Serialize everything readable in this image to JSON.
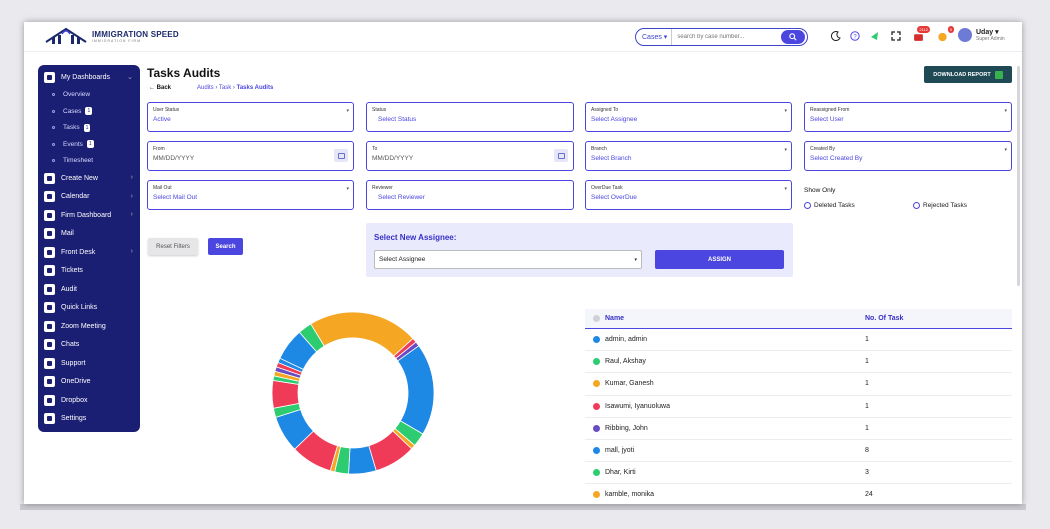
{
  "header": {
    "brand": "IMMIGRATION SPEED",
    "brand_sub": "IMMIGRATION FIRM",
    "search_category": "Cases",
    "search_placeholder": "search by case number...",
    "notif_count": "2112",
    "alert_count": "0",
    "user_name": "Uday",
    "user_role": "Super Admin"
  },
  "sidebar": {
    "items": [
      {
        "label": "My Dashboards"
      },
      {
        "label": "Create New"
      },
      {
        "label": "Calendar"
      },
      {
        "label": "Firm Dashboard"
      },
      {
        "label": "Mail"
      },
      {
        "label": "Front Desk"
      },
      {
        "label": "Tickets"
      },
      {
        "label": "Audit"
      },
      {
        "label": "Quick Links"
      },
      {
        "label": "Zoom Meeting"
      },
      {
        "label": "Chats"
      },
      {
        "label": "Support"
      },
      {
        "label": "OneDrive"
      },
      {
        "label": "Dropbox"
      },
      {
        "label": "Settings"
      }
    ],
    "sub": [
      {
        "label": "Overview",
        "count": ""
      },
      {
        "label": "Cases",
        "count": "1"
      },
      {
        "label": "Tasks",
        "count": "1"
      },
      {
        "label": "Events",
        "count": "1"
      },
      {
        "label": "Timesheet",
        "count": ""
      }
    ]
  },
  "page": {
    "title": "Tasks Audits",
    "back": "Back",
    "crumb1": "Audits",
    "crumb2": "Task",
    "crumb3": "Tasks Audits",
    "download": "DOWNLOAD REPORT"
  },
  "filters": {
    "user_status": {
      "label": "User Status",
      "value": "Active"
    },
    "status": {
      "label": "Status",
      "value": "Select Status"
    },
    "assigned_to": {
      "label": "Assigned To",
      "value": "Select Assignee"
    },
    "reassigned_from": {
      "label": "Reassigned From",
      "value": "Select User"
    },
    "from": {
      "label": "From",
      "value": "MM/DD/YYYY"
    },
    "to": {
      "label": "To",
      "value": "MM/DD/YYYY"
    },
    "branch": {
      "label": "Branch",
      "value": "Select Branch"
    },
    "created_by": {
      "label": "Created By",
      "value": "Select Created By"
    },
    "mail_out": {
      "label": "Mail Out",
      "value": "Select Mail Out"
    },
    "reviewer": {
      "label": "Reviewer",
      "value": "Select Reviewer"
    },
    "overdue": {
      "label": "OverDue Task",
      "value": "Select OverDue"
    },
    "show_only": "Show Only",
    "deleted": "Deleted Tasks",
    "rejected": "Rejected Tasks",
    "reset": "Reset Filters",
    "search": "Search"
  },
  "assign": {
    "title": "Select New Assignee:",
    "placeholder": "Select Assignee",
    "button": "ASSIGN"
  },
  "table": {
    "headers": [
      "Name",
      "No. Of Task"
    ],
    "rows": [
      {
        "name": "admin, admin",
        "count": "1",
        "color": "#1e88e5"
      },
      {
        "name": "Raul, Akshay",
        "count": "1",
        "color": "#2ecc71"
      },
      {
        "name": "Kumar, Ganesh",
        "count": "1",
        "color": "#f5a623"
      },
      {
        "name": "Isawumi, Iyanuoluwa",
        "count": "1",
        "color": "#ef3b57"
      },
      {
        "name": "Ribbing, John",
        "count": "1",
        "color": "#6a4cc2"
      },
      {
        "name": "mall, jyoti",
        "count": "8",
        "color": "#1e88e5"
      },
      {
        "name": "Dhar, Kirti",
        "count": "3",
        "color": "#2ecc71"
      },
      {
        "name": "kamble, monika",
        "count": "24",
        "color": "#f5a623"
      }
    ]
  },
  "chart_data": {
    "type": "pie",
    "donut": true,
    "slices": [
      {
        "color": "#f5a623",
        "value": 24
      },
      {
        "color": "#ef3b57",
        "value": 1
      },
      {
        "color": "#6a4cc2",
        "value": 1
      },
      {
        "color": "#1e88e5",
        "value": 20
      },
      {
        "color": "#2ecc71",
        "value": 3
      },
      {
        "color": "#f5a623",
        "value": 1
      },
      {
        "color": "#ef3b57",
        "value": 9
      },
      {
        "color": "#1e88e5",
        "value": 6
      },
      {
        "color": "#2ecc71",
        "value": 3
      },
      {
        "color": "#f5a623",
        "value": 1
      },
      {
        "color": "#ef3b57",
        "value": 9
      },
      {
        "color": "#1e88e5",
        "value": 8
      },
      {
        "color": "#2ecc71",
        "value": 2
      },
      {
        "color": "#ef3b57",
        "value": 6
      },
      {
        "color": "#2ecc71",
        "value": 1
      },
      {
        "color": "#f5a623",
        "value": 1
      },
      {
        "color": "#6a4cc2",
        "value": 1
      },
      {
        "color": "#ef3b57",
        "value": 1
      },
      {
        "color": "#1e88e5",
        "value": 1
      },
      {
        "color": "#1e88e5",
        "value": 7
      },
      {
        "color": "#2ecc71",
        "value": 3
      }
    ]
  }
}
